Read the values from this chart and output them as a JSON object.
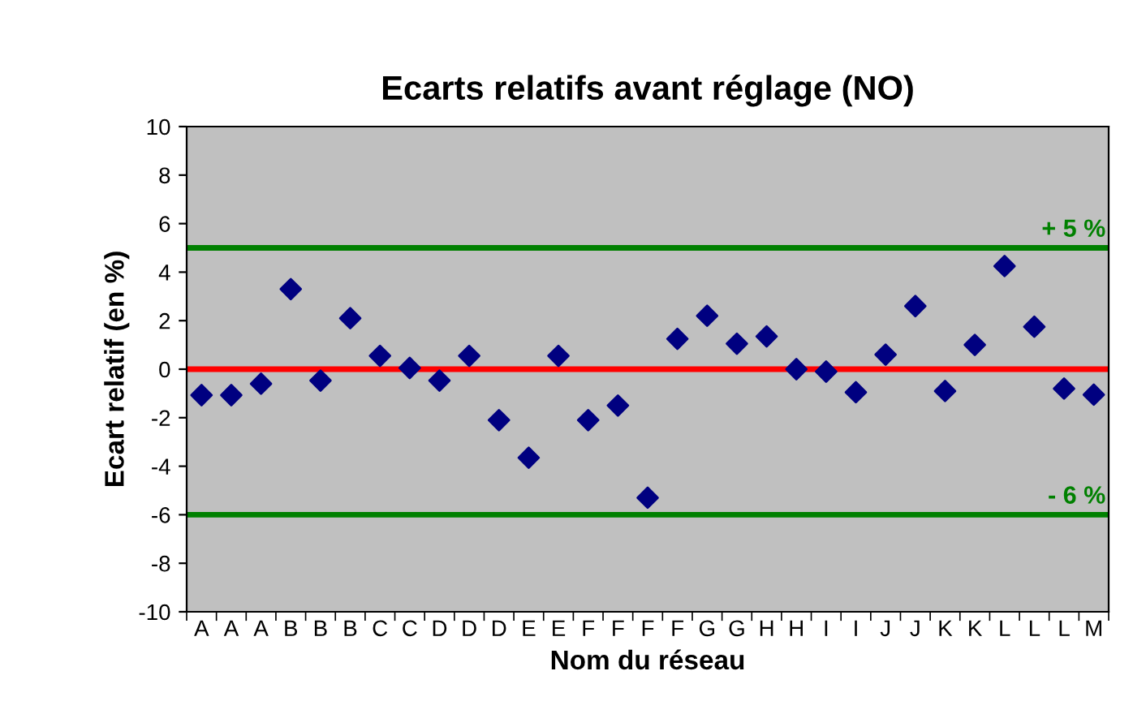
{
  "chart_data": {
    "type": "scatter",
    "title": "Ecarts relatifs avant réglage (NO)",
    "xlabel": "Nom du réseau",
    "ylabel": "Ecart relatif (en %)",
    "categories": [
      "A",
      "A",
      "A",
      "B",
      "B",
      "B",
      "C",
      "C",
      "D",
      "D",
      "D",
      "E",
      "E",
      "F",
      "F",
      "F",
      "F",
      "G",
      "G",
      "H",
      "H",
      "I",
      "I",
      "J",
      "J",
      "K",
      "K",
      "L",
      "L",
      "L",
      "M"
    ],
    "series": [
      {
        "color": "#000080",
        "values": [
          -1.07,
          -1.07,
          -0.6,
          3.3,
          -0.47,
          2.1,
          0.55,
          0.05,
          -0.47,
          0.55,
          -2.1,
          -3.65,
          0.55,
          -2.1,
          -1.5,
          -5.3,
          1.25,
          2.2,
          1.05,
          1.35,
          0.0,
          -0.1,
          -0.95,
          0.6,
          2.6,
          -0.9,
          1.0,
          4.25,
          1.75,
          -0.8,
          -1.05
        ]
      }
    ],
    "marker": "diamond",
    "ylim": [
      -10,
      10
    ],
    "yticks": [
      -10,
      -8,
      -6,
      -4,
      -2,
      0,
      2,
      4,
      6,
      8,
      10
    ],
    "grid": false,
    "ref_lines": [
      {
        "axis": "y",
        "value": 5,
        "label": "+ 5 %",
        "color": "#008000"
      },
      {
        "axis": "y",
        "value": -6,
        "label": "- 6 %",
        "color": "#008000"
      },
      {
        "axis": "y",
        "value": 0,
        "color": "#ff0000"
      }
    ]
  }
}
